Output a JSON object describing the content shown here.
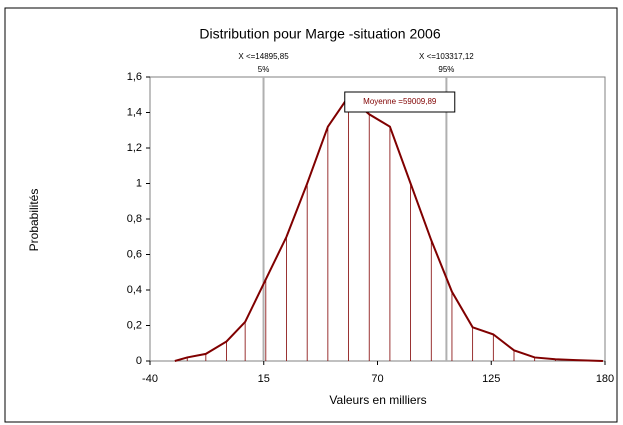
{
  "chart_data": {
    "type": "line",
    "title": "Distribution pour Marge -situation 2006",
    "xlabel": "Valeurs en milliers",
    "ylabel": "Probabilités",
    "color": "#800000",
    "x": [
      -28,
      -22,
      -13,
      -3,
      6,
      16,
      26,
      36,
      46,
      56,
      66,
      76,
      86,
      96,
      106,
      116,
      126,
      136,
      146,
      156,
      166,
      179
    ],
    "values": [
      0,
      0.02,
      0.04,
      0.11,
      0.22,
      0.46,
      0.7,
      1.0,
      1.32,
      1.49,
      1.39,
      1.32,
      1.0,
      0.68,
      0.39,
      0.19,
      0.15,
      0.06,
      0.02,
      0.01,
      0.005,
      0
    ],
    "xlim": [
      -40,
      180
    ],
    "xticks": [
      -40,
      15,
      70,
      125,
      180
    ],
    "ylim": [
      0,
      1.6
    ],
    "yticks": [
      0,
      {
        "value": 0.2,
        "label": "0,2"
      },
      {
        "value": 0.4,
        "label": "0,4"
      },
      {
        "value": 0.6,
        "label": "0,6"
      },
      {
        "value": 0.8,
        "label": "0,8"
      },
      1,
      {
        "value": 1.2,
        "label": "1,2"
      },
      {
        "value": 1.4,
        "label": "1,4"
      },
      {
        "value": 1.6,
        "label": "1,6"
      }
    ],
    "reference_lines": [
      {
        "value": 14.89585,
        "label": "X <=14895,85",
        "percent": "5%"
      },
      {
        "value": 103.31712,
        "label": "X <=103317,12",
        "percent": "95%"
      }
    ],
    "mean": {
      "value": 59.00989,
      "label": "Moyenne =59009,89"
    }
  }
}
